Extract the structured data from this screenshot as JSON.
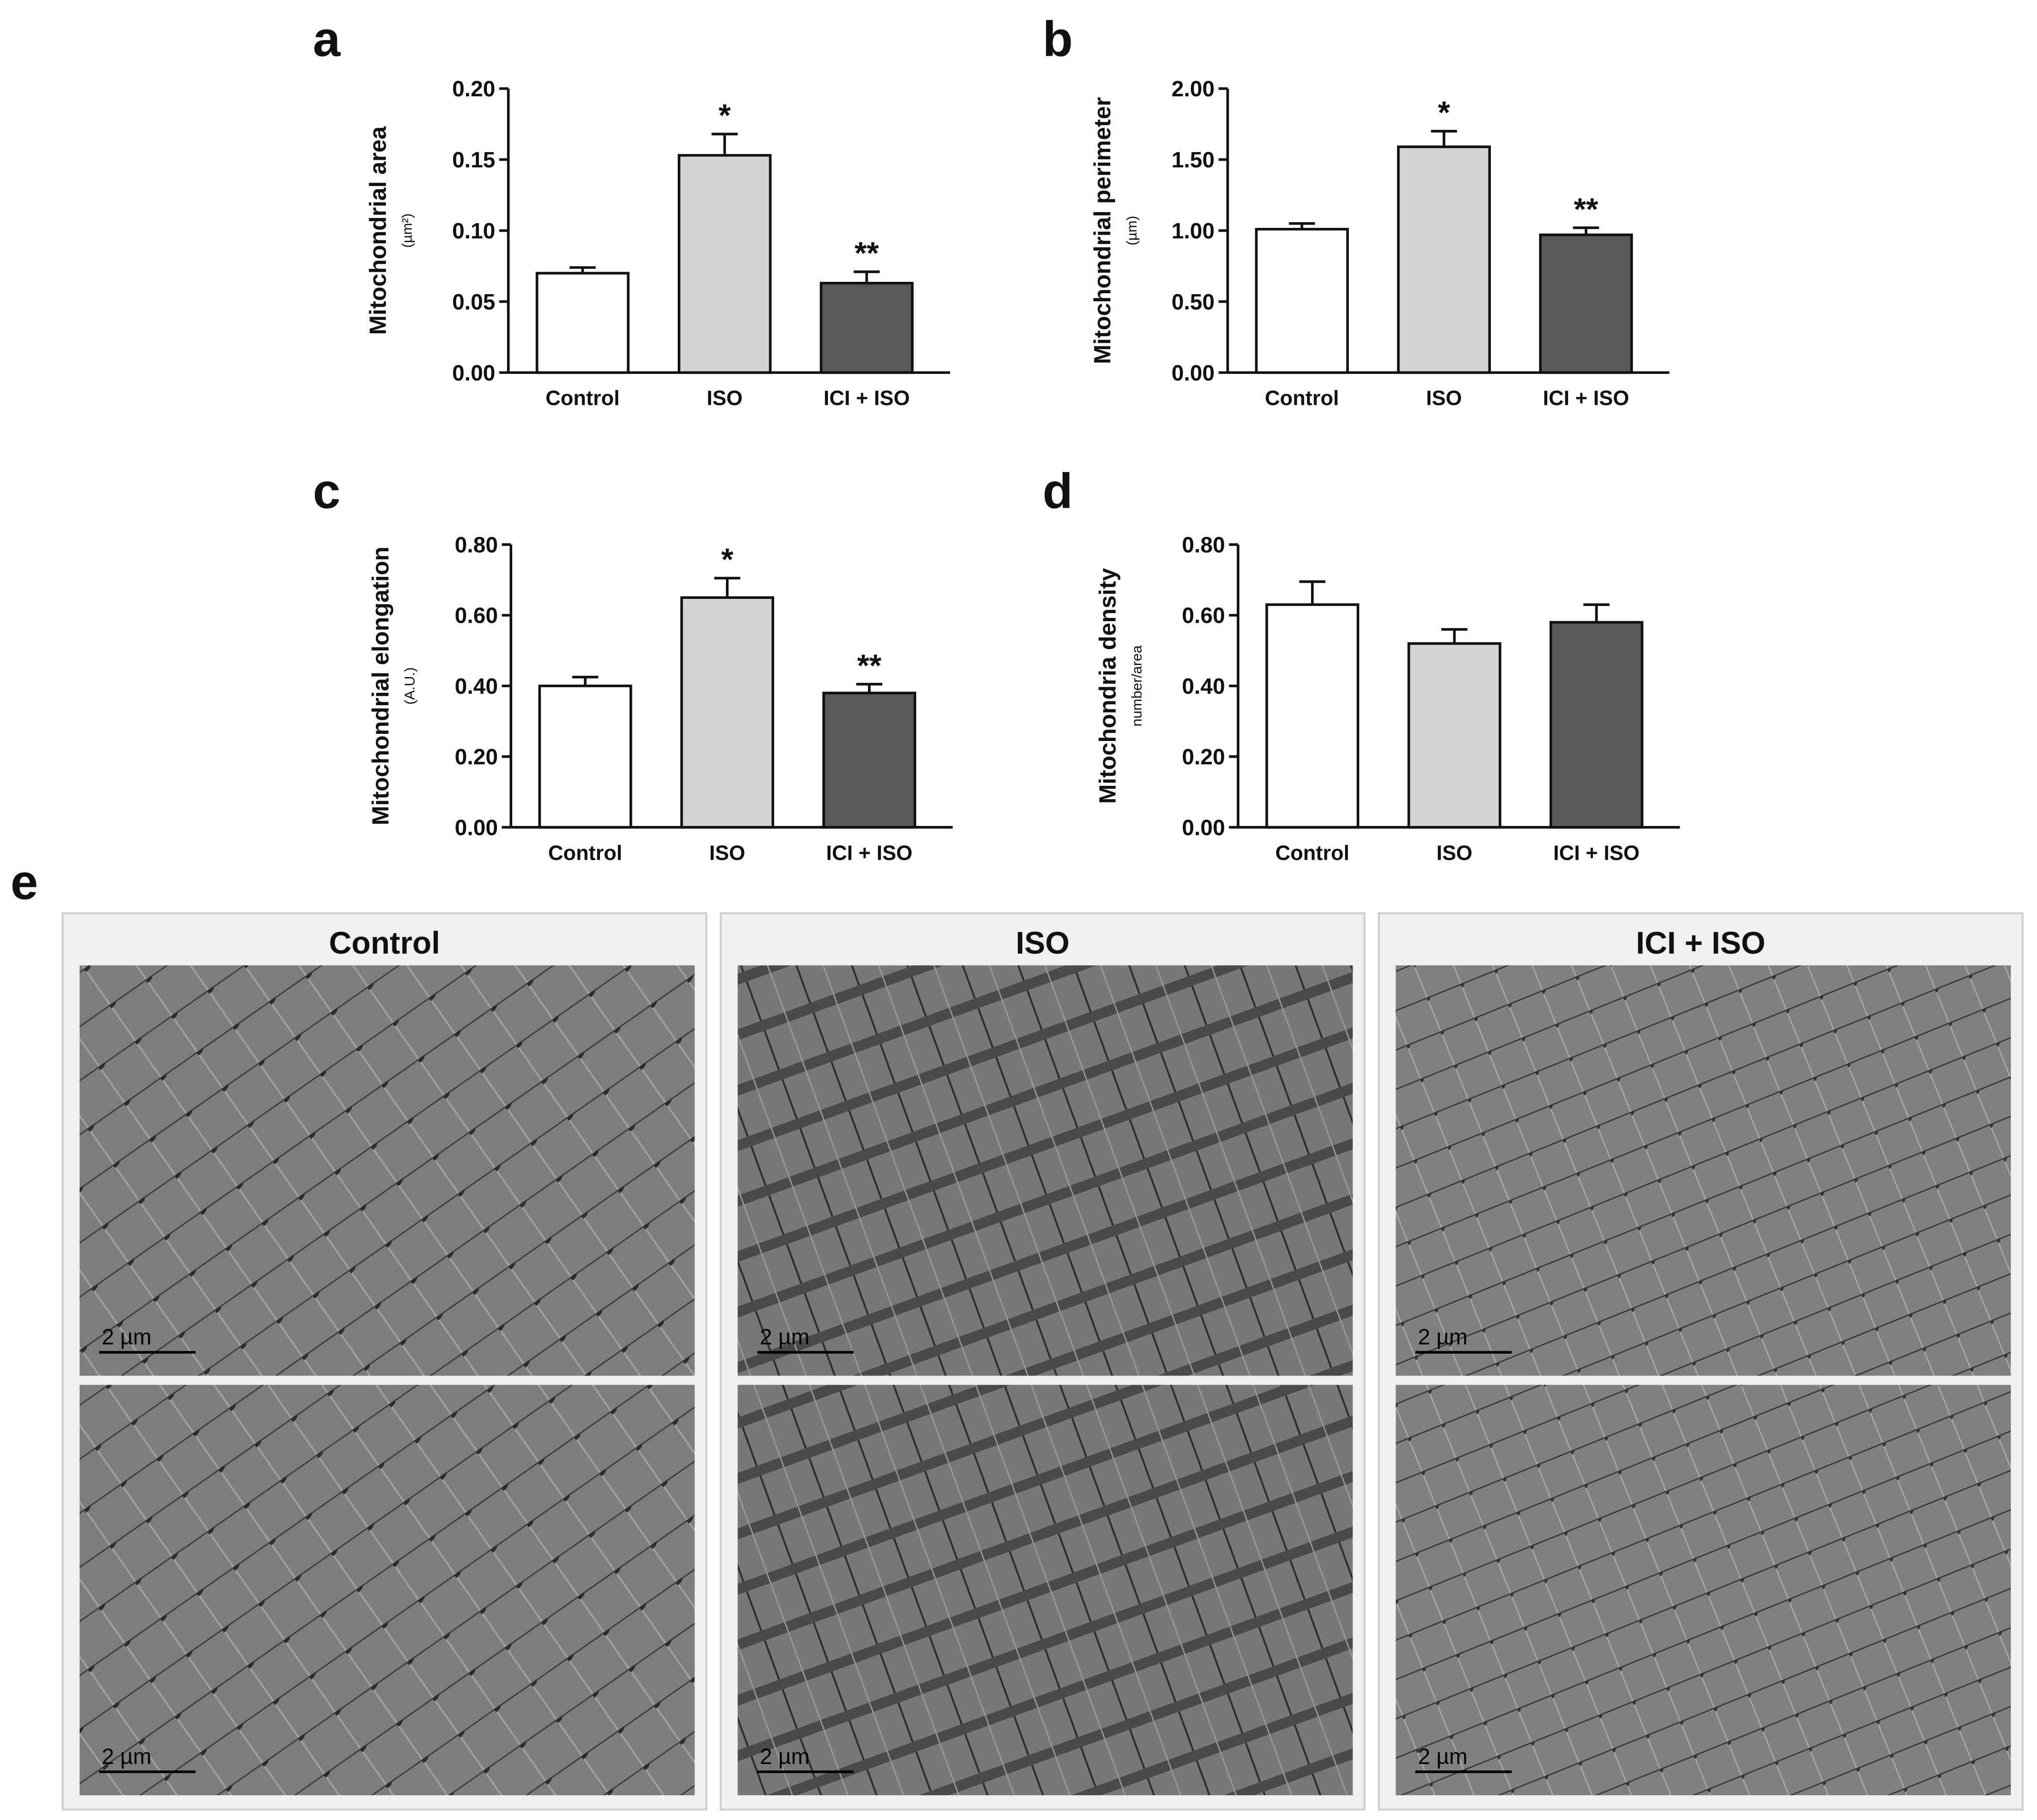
{
  "chart_data": [
    {
      "type": "bar",
      "panel": "a",
      "ylabel": "Mitochondrial area",
      "unit": "(µm²)",
      "categories": [
        "Control",
        "ISO",
        "ICI + ISO"
      ],
      "values": [
        0.07,
        0.153,
        0.063
      ],
      "errors": [
        0.004,
        0.015,
        0.008
      ],
      "markers": [
        null,
        "*",
        "**"
      ],
      "colors": [
        "#ffffff",
        "#d4d4d4",
        "#595959"
      ],
      "ylim": [
        0,
        0.2
      ],
      "yticks": [
        {
          "value": 0,
          "label": "0.00"
        },
        {
          "value": 0.05,
          "label": "0.05"
        },
        {
          "value": 0.1,
          "label": "0.10"
        },
        {
          "value": 0.15,
          "label": "0.15"
        },
        {
          "value": 0.2,
          "label": "0.20"
        }
      ]
    },
    {
      "type": "bar",
      "panel": "b",
      "ylabel": "Mitochondrial perimeter",
      "unit": "(µm)",
      "categories": [
        "Control",
        "ISO",
        "ICI + ISO"
      ],
      "values": [
        1.01,
        1.59,
        0.97
      ],
      "errors": [
        0.04,
        0.11,
        0.05
      ],
      "markers": [
        null,
        "*",
        "**"
      ],
      "colors": [
        "#ffffff",
        "#d4d4d4",
        "#595959"
      ],
      "ylim": [
        0,
        2
      ],
      "yticks": [
        {
          "value": 0,
          "label": "0.00"
        },
        {
          "value": 0.5,
          "label": "0.50"
        },
        {
          "value": 1,
          "label": "1.00"
        },
        {
          "value": 1.5,
          "label": "1.50"
        },
        {
          "value": 2,
          "label": "2.00"
        }
      ]
    },
    {
      "type": "bar",
      "panel": "c",
      "ylabel": "Mitochondrial elongation",
      "unit": "(A.U.)",
      "categories": [
        "Control",
        "ISO",
        "ICI + ISO"
      ],
      "values": [
        0.4,
        0.65,
        0.38
      ],
      "errors": [
        0.025,
        0.055,
        0.025
      ],
      "markers": [
        null,
        "*",
        "**"
      ],
      "colors": [
        "#ffffff",
        "#d4d4d4",
        "#595959"
      ],
      "ylim": [
        0,
        0.8
      ],
      "yticks": [
        {
          "value": 0,
          "label": "0.00"
        },
        {
          "value": 0.2,
          "label": "0.20"
        },
        {
          "value": 0.4,
          "label": "0.40"
        },
        {
          "value": 0.6,
          "label": "0.60"
        },
        {
          "value": 0.8,
          "label": "0.80"
        }
      ]
    },
    {
      "type": "bar",
      "panel": "d",
      "ylabel": "Mitochondria density",
      "unit": "number/area",
      "categories": [
        "Control",
        "ISO",
        "ICI + ISO"
      ],
      "values": [
        0.63,
        0.52,
        0.58
      ],
      "errors": [
        0.065,
        0.04,
        0.05
      ],
      "colors": [
        "#ffffff",
        "#d4d4d4",
        "#595959"
      ],
      "ylim": [
        0,
        0.8
      ],
      "yticks": [
        {
          "value": 0,
          "label": "0.00"
        },
        {
          "value": 0.2,
          "label": "0.20"
        },
        {
          "value": 0.4,
          "label": "0.40"
        },
        {
          "value": 0.6,
          "label": "0.60"
        },
        {
          "value": 0.8,
          "label": "0.80"
        }
      ]
    }
  ],
  "panel_e": {
    "label": "e",
    "columns": [
      "Control",
      "ISO",
      "ICI + ISO"
    ],
    "scale_bar": "2 µm"
  }
}
